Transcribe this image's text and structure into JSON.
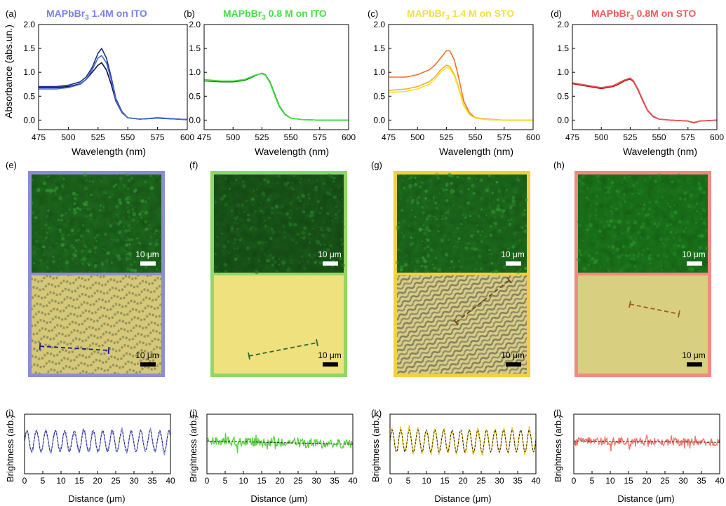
{
  "figure": {
    "absorbance_ylabel": "Absorbance (abs.un.)",
    "absorbance_xlabel": "Wavelength (nm)",
    "profile_ylabel": "Brightness (arb.)",
    "profile_xlabel": "Distance (μm)",
    "scalebar_label": "10 μm"
  },
  "panel_letters": {
    "a": "(a)",
    "b": "(b)",
    "c": "(c)",
    "d": "(d)",
    "e": "(e)",
    "f": "(f)",
    "g": "(g)",
    "h": "(h)",
    "i": "(i)",
    "j": "(j)",
    "k": "(k)",
    "l": "(l)"
  },
  "titles": [
    {
      "main": "MAPbBr",
      "sub": "3",
      "rest": " 1.4M on ITO",
      "color": "#7b7fe6"
    },
    {
      "main": "MAPbBr",
      "sub": "3",
      "rest": " 0.8 M on ITO",
      "color": "#44e044"
    },
    {
      "main": "MAPbBr",
      "sub": "3",
      "rest": " 1.4 M on STO",
      "color": "#f2e040"
    },
    {
      "main": "MAPbBr",
      "sub": "3",
      "rest": " 0.8M on STO",
      "color": "#f05a5a"
    }
  ],
  "frame_colors": [
    "#8c8cd8",
    "#8ed86a",
    "#f2d040",
    "#f08a80"
  ],
  "chart_data": [
    {
      "type": "line",
      "panel": "a",
      "xlabel": "Wavelength (nm)",
      "ylabel": "Absorbance (abs.un.)",
      "xlim": [
        475,
        600
      ],
      "ylim": [
        -0.2,
        2.0
      ],
      "xticks": [
        475,
        500,
        525,
        550,
        575,
        600
      ],
      "yticks": [
        0.0,
        0.5,
        1.0,
        1.5,
        2.0
      ],
      "series": [
        {
          "color": "#1f2a8a",
          "x": [
            475,
            490,
            500,
            510,
            515,
            520,
            525,
            528,
            532,
            536,
            540,
            545,
            550,
            560,
            575,
            600
          ],
          "y": [
            0.7,
            0.7,
            0.73,
            0.8,
            0.9,
            1.1,
            1.4,
            1.5,
            1.3,
            0.9,
            0.45,
            0.18,
            0.05,
            0.02,
            0.05,
            0.01
          ]
        },
        {
          "color": "#0d0d40",
          "x": [
            475,
            490,
            500,
            510,
            515,
            520,
            525,
            528,
            532,
            536,
            540,
            545,
            550,
            560,
            575,
            600
          ],
          "y": [
            0.68,
            0.68,
            0.7,
            0.76,
            0.85,
            1.0,
            1.15,
            1.2,
            1.05,
            0.75,
            0.4,
            0.16,
            0.05,
            0.02,
            0.04,
            0.01
          ]
        },
        {
          "color": "#3f6ad8",
          "x": [
            475,
            490,
            500,
            510,
            515,
            520,
            525,
            528,
            532,
            536,
            540,
            545,
            550,
            560,
            575,
            600
          ],
          "y": [
            0.65,
            0.65,
            0.68,
            0.75,
            0.85,
            1.05,
            1.3,
            1.35,
            1.2,
            0.85,
            0.42,
            0.17,
            0.05,
            0.02,
            0.04,
            0.01
          ]
        }
      ]
    },
    {
      "type": "line",
      "panel": "b",
      "xlabel": "Wavelength (nm)",
      "ylabel": "",
      "xlim": [
        475,
        600
      ],
      "ylim": [
        -0.2,
        2.0
      ],
      "xticks": [
        475,
        500,
        525,
        550,
        575,
        600
      ],
      "yticks": [
        0.0,
        0.5,
        1.0,
        1.5,
        2.0
      ],
      "series": [
        {
          "color": "#1a8a1a",
          "x": [
            475,
            490,
            500,
            510,
            515,
            520,
            525,
            528,
            532,
            536,
            540,
            545,
            550,
            560,
            575,
            600
          ],
          "y": [
            0.82,
            0.8,
            0.8,
            0.83,
            0.88,
            0.94,
            0.98,
            0.95,
            0.8,
            0.55,
            0.3,
            0.12,
            0.04,
            0.01,
            0.0,
            0.0
          ]
        },
        {
          "color": "#44e044",
          "x": [
            475,
            490,
            500,
            510,
            515,
            520,
            525,
            528,
            532,
            536,
            540,
            545,
            550,
            560,
            575,
            600
          ],
          "y": [
            0.85,
            0.82,
            0.82,
            0.85,
            0.9,
            0.95,
            0.97,
            0.94,
            0.78,
            0.52,
            0.28,
            0.11,
            0.04,
            0.01,
            0.0,
            0.0
          ]
        }
      ]
    },
    {
      "type": "line",
      "panel": "c",
      "xlabel": "Wavelength (nm)",
      "ylabel": "",
      "xlim": [
        475,
        600
      ],
      "ylim": [
        -0.2,
        2.0
      ],
      "xticks": [
        475,
        500,
        525,
        550,
        575,
        600
      ],
      "yticks": [
        0.0,
        0.5,
        1.0,
        1.5,
        2.0
      ],
      "series": [
        {
          "color": "#f07020",
          "x": [
            475,
            490,
            500,
            510,
            515,
            520,
            525,
            528,
            532,
            536,
            540,
            545,
            550,
            560,
            575,
            600
          ],
          "y": [
            0.9,
            0.9,
            0.95,
            1.05,
            1.15,
            1.3,
            1.45,
            1.45,
            1.25,
            0.85,
            0.4,
            0.15,
            0.05,
            0.02,
            0.0,
            0.0
          ]
        },
        {
          "color": "#f0b020",
          "x": [
            475,
            490,
            500,
            510,
            515,
            520,
            525,
            528,
            532,
            536,
            540,
            545,
            550,
            560,
            575,
            600
          ],
          "y": [
            0.62,
            0.65,
            0.7,
            0.8,
            0.9,
            1.05,
            1.15,
            1.12,
            0.95,
            0.65,
            0.32,
            0.12,
            0.04,
            0.01,
            0.0,
            0.0
          ]
        },
        {
          "color": "#f8e030",
          "x": [
            475,
            490,
            500,
            510,
            515,
            520,
            525,
            528,
            532,
            536,
            540,
            545,
            550,
            560,
            575,
            600
          ],
          "y": [
            0.58,
            0.6,
            0.65,
            0.75,
            0.85,
            1.0,
            1.1,
            1.08,
            0.92,
            0.62,
            0.3,
            0.11,
            0.04,
            0.01,
            0.0,
            0.0
          ]
        }
      ]
    },
    {
      "type": "line",
      "panel": "d",
      "xlabel": "Wavelength (nm)",
      "ylabel": "",
      "xlim": [
        475,
        600
      ],
      "ylim": [
        -0.2,
        2.0
      ],
      "xticks": [
        475,
        500,
        525,
        550,
        575,
        600
      ],
      "yticks": [
        0.0,
        0.5,
        1.0,
        1.5,
        2.0
      ],
      "series": [
        {
          "color": "#b01a1a",
          "x": [
            475,
            490,
            500,
            510,
            515,
            520,
            525,
            528,
            532,
            536,
            540,
            545,
            550,
            560,
            575,
            580,
            585,
            600
          ],
          "y": [
            0.76,
            0.7,
            0.66,
            0.7,
            0.75,
            0.82,
            0.86,
            0.8,
            0.62,
            0.4,
            0.2,
            0.07,
            0.02,
            0.0,
            -0.02,
            -0.06,
            -0.02,
            0.0
          ]
        },
        {
          "color": "#f05050",
          "x": [
            475,
            490,
            500,
            510,
            515,
            520,
            525,
            528,
            532,
            536,
            540,
            545,
            550,
            560,
            575,
            580,
            585,
            600
          ],
          "y": [
            0.78,
            0.72,
            0.68,
            0.72,
            0.78,
            0.84,
            0.88,
            0.82,
            0.64,
            0.42,
            0.21,
            0.08,
            0.02,
            0.0,
            -0.02,
            -0.05,
            -0.02,
            0.0
          ]
        }
      ]
    },
    {
      "type": "line",
      "panel": "i",
      "xlabel": "Distance (μm)",
      "ylabel": "Brightness (arb.)",
      "xlim": [
        0,
        40
      ],
      "xticks": [
        0,
        5,
        10,
        15,
        20,
        25,
        30,
        35,
        40
      ],
      "pattern": "periodic",
      "period_um": 2.6,
      "amplitude": 0.8,
      "noise": 0.15,
      "series": [
        {
          "name": "",
          "color": "#8c8ce6",
          "style": "solid"
        },
        {
          "name": "",
          "color": "#1f2a70",
          "style": "dashed"
        }
      ]
    },
    {
      "type": "line",
      "panel": "j",
      "xlabel": "Distance (μm)",
      "ylabel": "Brightness (arb.)",
      "xlim": [
        0,
        40
      ],
      "xticks": [
        0,
        5,
        10,
        15,
        20,
        25,
        30,
        35,
        40
      ],
      "pattern": "flat",
      "noise": 0.35,
      "slope": -0.25,
      "series": [
        {
          "name": "",
          "color": "#5ad040",
          "style": "solid"
        },
        {
          "name": "",
          "color": "#222222",
          "style": "dashed"
        }
      ]
    },
    {
      "type": "line",
      "panel": "k",
      "xlabel": "Distance (μm)",
      "ylabel": "Brightness (arb.)",
      "xlim": [
        0,
        40
      ],
      "xticks": [
        0,
        5,
        10,
        15,
        20,
        25,
        30,
        35,
        40
      ],
      "pattern": "periodic",
      "period_um": 2.35,
      "amplitude": 0.85,
      "noise": 0.12,
      "series": [
        {
          "name": "",
          "color": "#f2c820",
          "style": "solid"
        },
        {
          "name": "",
          "color": "#222222",
          "style": "dashed"
        }
      ]
    },
    {
      "type": "line",
      "panel": "l",
      "xlabel": "Distance (μm)",
      "ylabel": "Brightness (arb.)",
      "xlim": [
        0,
        40
      ],
      "xticks": [
        0,
        5,
        10,
        15,
        20,
        25,
        30,
        35,
        40
      ],
      "pattern": "flat",
      "noise": 0.3,
      "slope": -0.1,
      "series": [
        {
          "name": "",
          "color": "#f07060",
          "style": "solid"
        },
        {
          "name": "",
          "color": "#222222",
          "style": "dashed"
        }
      ]
    }
  ],
  "micrographs": [
    {
      "panel": "e",
      "pl_base": "#1e6a1e",
      "pl_spot": "#37a837",
      "bf_base": "#d6c878",
      "bf_pattern": "wavy-dots",
      "line_color": "#1a237e"
    },
    {
      "panel": "f",
      "pl_base": "#1a5a1a",
      "pl_spot": "#2c8a2c",
      "bf_base": "#efe17e",
      "bf_pattern": "plain",
      "line_color": "#2e6a2e"
    },
    {
      "panel": "g",
      "pl_base": "#1e6e1e",
      "pl_spot": "#3aaa3a",
      "bf_base": "#d8cc88",
      "bf_pattern": "labyrinth",
      "line_color": "#6a4a20"
    },
    {
      "panel": "h",
      "pl_base": "#1c7a1c",
      "pl_spot": "#2ea02e",
      "bf_base": "#d8d080",
      "bf_pattern": "plain",
      "line_color": "#a05a20"
    }
  ]
}
